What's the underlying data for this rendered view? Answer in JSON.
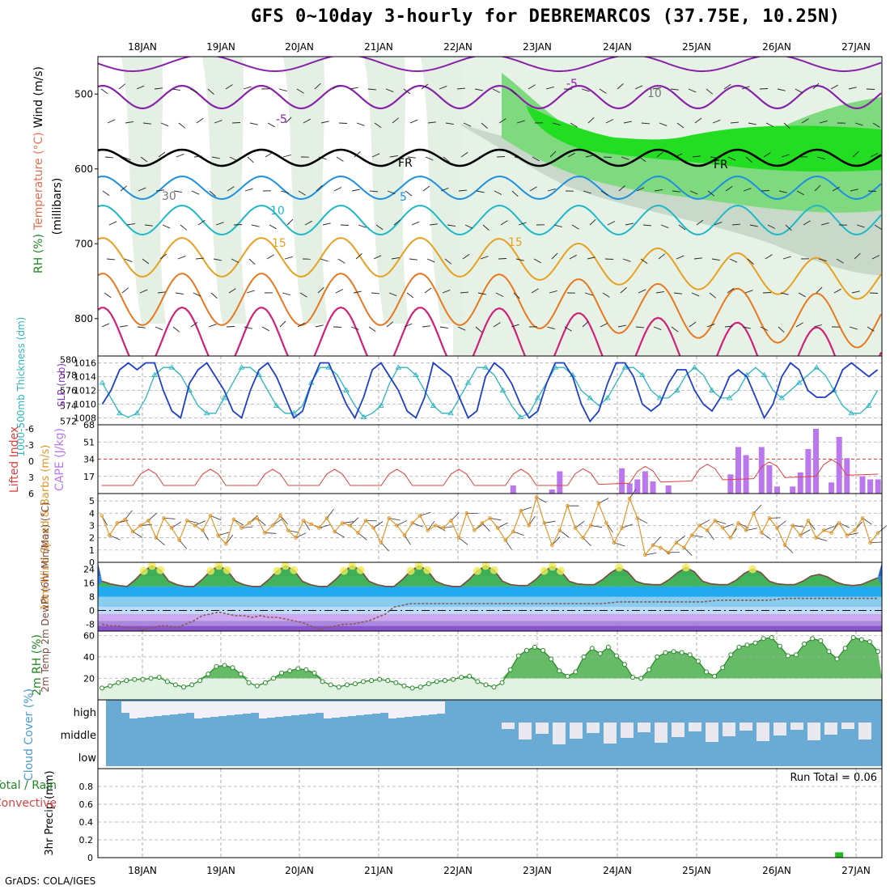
{
  "title": "GFS 0~10day 3-hourly for DEBREMARCOS (37.75E, 10.25N)",
  "footer": "GrADS: COLA/IGES",
  "run_total": "Run Total = 0.06",
  "chart_data": [
    {
      "type": "heatmap",
      "panel": "upper-air",
      "ylabel_parts": [
        "RH (%)",
        "Temperature (°C)",
        "Wind (m/s)"
      ],
      "y_unit_label": "(millibars)",
      "x_ticks": [
        "18JAN",
        "19JAN",
        "20JAN",
        "21JAN",
        "22JAN",
        "23JAN",
        "24JAN",
        "25JAN",
        "26JAN",
        "27JAN"
      ],
      "ylim": [
        850,
        450
      ],
      "yticks": [
        500,
        600,
        700,
        800
      ],
      "contour_labels": [
        "-5",
        "-5",
        "FR",
        "FR",
        "5",
        "10",
        "15",
        "15",
        "30",
        "10"
      ]
    },
    {
      "type": "line",
      "panel": "slp-thickness",
      "ylabel_left": "1000-500mb Thickness (dm)",
      "ylabel_right": "SLP (mb)",
      "left_ticks": [
        572,
        574,
        576,
        578,
        580
      ],
      "right_ticks": [
        1008,
        1010,
        1012,
        1014,
        1016
      ],
      "ylim_left": [
        571.5,
        580.5
      ],
      "ylim_right": [
        1007,
        1017
      ],
      "series": [
        {
          "name": "SLP (mb)",
          "color": "#1f3fc8",
          "values": [
            1010,
            1012,
            1015,
            1016,
            1015,
            1016,
            1016,
            1012,
            1009,
            1008,
            1013,
            1015,
            1016,
            1014,
            1012,
            1009,
            1008,
            1012,
            1015,
            1016,
            1014,
            1011,
            1008,
            1009,
            1013,
            1016,
            1016,
            1013,
            1010,
            1008,
            1011,
            1015,
            1016,
            1014,
            1012,
            1009,
            1008,
            1011,
            1016,
            1015,
            1014,
            1011,
            1008,
            1009,
            1014,
            1016,
            1015,
            1013,
            1010,
            1008,
            1009,
            1013,
            1016,
            1016,
            1014,
            1010,
            1007.5,
            1009,
            1013,
            1016,
            1016,
            1014,
            1010,
            1009,
            1010,
            1013,
            1015,
            1015,
            1012,
            1010,
            1009,
            1011,
            1014,
            1015,
            1014,
            1011,
            1008,
            1010,
            1014,
            1016,
            1015,
            1012,
            1011,
            1011,
            1012,
            1015,
            1016,
            1015,
            1014,
            1015
          ]
        },
        {
          "name": "Thickness (dm)",
          "color": "#2bb5c0",
          "values": [
            577,
            575,
            573,
            572.5,
            573,
            575,
            578,
            579,
            579,
            578,
            576,
            574,
            573,
            573,
            575,
            577,
            579,
            579,
            578,
            576,
            574,
            573,
            573,
            574,
            577,
            579,
            579,
            578,
            576,
            574,
            572.5,
            573,
            574,
            577,
            579,
            579,
            578,
            576,
            574,
            573,
            573,
            575,
            577,
            579,
            579,
            578,
            576,
            574,
            572.5,
            573,
            575,
            577,
            579,
            579,
            578,
            576,
            575,
            574,
            575,
            577,
            579,
            579,
            578,
            576,
            575,
            575,
            576,
            578,
            579,
            578,
            576,
            575,
            575,
            576,
            578,
            579,
            578,
            576,
            575,
            576,
            577,
            578,
            579,
            578,
            576,
            574,
            573,
            573,
            574,
            576
          ]
        }
      ]
    },
    {
      "type": "bar",
      "panel": "cape-lifted-index",
      "ylabel_left": "Lifted Index",
      "ylabel_right": "CAPE (J/kg)",
      "left_ticks": [
        "-6",
        "-3",
        "0",
        "3",
        "6"
      ],
      "right_ticks": [
        17,
        34,
        51,
        68
      ],
      "ylim_cape": [
        0,
        68
      ],
      "ylim_li": [
        6,
        -6
      ],
      "cape": [
        0,
        0,
        0,
        0,
        0,
        0,
        0,
        0,
        0,
        0,
        0,
        0,
        0,
        0,
        0,
        0,
        0,
        0,
        0,
        0,
        0,
        0,
        0,
        0,
        0,
        0,
        0,
        0,
        0,
        0,
        0,
        0,
        0,
        0,
        0,
        0,
        0,
        0,
        0,
        0,
        0,
        0,
        0,
        0,
        0,
        0,
        0,
        0,
        0,
        0,
        0,
        0,
        0,
        8,
        0,
        0,
        0,
        0,
        4,
        22,
        0,
        0,
        0,
        0,
        0,
        0,
        0,
        25,
        10,
        14,
        22,
        12,
        0,
        8,
        0,
        0,
        0,
        0,
        0,
        0,
        0,
        19,
        46,
        38,
        0,
        46,
        28,
        7,
        0,
        7,
        21,
        44,
        64,
        0,
        11,
        56,
        35,
        0,
        17,
        14,
        14
      ]
    },
    {
      "type": "line",
      "panel": "wind-10m",
      "ylabel": "10m Wind Speed & Barbs (m/s)",
      "left_ticks": [
        0,
        1,
        2,
        3,
        4,
        5
      ],
      "ylim": [
        0,
        5.6
      ],
      "series": [
        {
          "name": "10m Wind Speed",
          "color": "#e0962a",
          "values": [
            3.8,
            2.2,
            3.2,
            3.5,
            2.5,
            3.0,
            3.4,
            2.0,
            3.6,
            2.8,
            1.8,
            3.4,
            3.0,
            2.6,
            3.8,
            2.2,
            1.5,
            3.5,
            2.8,
            3.2,
            3.6,
            2.4,
            3.0,
            3.8,
            2.6,
            2.0,
            3.4,
            3.1,
            2.8,
            3.6,
            2.5,
            3.2,
            3.0,
            2.4,
            3.4,
            2.8,
            1.6,
            3.6,
            3.0,
            2.2,
            3.2,
            3.8,
            2.6,
            3.0,
            2.8,
            3.4,
            2.0,
            4.0,
            2.6,
            3.2,
            3.6,
            2.8,
            1.8,
            2.5,
            4.2,
            3.0,
            5.3,
            3.2,
            1.4,
            2.6,
            4.6,
            2.8,
            2.0,
            3.0,
            4.8,
            3.2,
            1.6,
            2.8,
            5.2,
            3.6,
            0.6,
            1.4,
            1.2,
            0.8,
            1.6,
            1.2,
            2.2,
            3.0,
            2.6,
            3.4,
            2.8,
            2.0,
            3.2,
            2.6,
            4.0,
            2.4,
            3.6,
            2.8,
            1.4,
            3.0,
            2.2,
            3.4,
            2.0,
            2.6,
            2.4,
            3.2,
            2.2,
            2.6,
            3.6,
            1.6,
            2.4
          ]
        }
      ]
    },
    {
      "type": "area",
      "panel": "temp-dewpoint",
      "ylabel": "2m Temp 2m DewPt (6hr Min/Max) (°C)",
      "left_ticks": [
        -8,
        0,
        8,
        16,
        24
      ],
      "ylim": [
        -12,
        28
      ],
      "series": [
        {
          "name": "2m Temp",
          "color": "#c8b43c",
          "values": [
            17,
            15.5,
            14.5,
            14,
            18,
            23,
            26,
            23.5,
            17,
            15,
            14,
            14,
            18,
            23,
            26,
            23.5,
            17,
            15,
            14,
            14,
            18,
            23,
            26,
            23.5,
            17,
            15,
            14,
            14,
            18,
            23,
            26,
            23.5,
            17,
            15,
            14,
            14,
            18,
            23,
            26,
            23.5,
            17,
            15,
            14,
            14,
            18,
            23,
            26,
            23.5,
            17,
            15,
            14.5,
            14.5,
            18,
            23,
            25.5,
            23,
            17,
            15.5,
            15,
            15,
            18,
            22,
            25,
            22.5,
            17,
            15.5,
            15,
            15,
            18,
            22,
            25,
            22.5,
            17,
            15.5,
            15,
            15,
            17.5,
            21.5,
            24,
            22,
            17,
            15.5,
            15,
            15,
            17,
            20,
            21,
            19.5,
            16.5,
            15,
            14.5,
            15,
            17,
            19
          ]
        },
        {
          "name": "2m DewPt",
          "color": "#8a5a50",
          "values": [
            -8,
            -9,
            -9,
            -10,
            -10,
            -11,
            -10,
            -9,
            -9,
            -10,
            -8,
            -6,
            -3,
            -2,
            -1,
            -2,
            -3,
            -3,
            -4,
            -3,
            -4,
            -4,
            -5,
            -6,
            -7,
            -9,
            -11,
            -10,
            -9,
            -8,
            -8,
            -7,
            -6,
            -4,
            -2,
            2,
            3,
            4,
            4,
            4,
            4,
            4,
            4,
            4,
            4,
            4,
            4,
            4,
            4,
            4,
            4,
            4,
            4,
            4,
            4,
            4,
            4,
            4,
            4,
            4,
            4,
            4.5,
            5,
            5,
            5,
            5,
            5,
            5,
            5,
            5,
            5,
            5,
            5,
            5.5,
            6,
            6,
            6,
            6,
            6,
            6,
            6,
            6.5,
            7,
            7,
            7,
            7,
            7,
            7,
            7,
            7,
            7,
            7,
            7,
            7
          ]
        }
      ]
    },
    {
      "type": "area",
      "panel": "rh-2m",
      "ylabel": "2m RH (%)",
      "left_ticks": [
        20,
        40,
        60
      ],
      "ylim": [
        0,
        64
      ],
      "series": [
        {
          "name": "2m RH",
          "color": "#2ca02c",
          "values": [
            11,
            13,
            16,
            18,
            19,
            19,
            20,
            21,
            17,
            14,
            12,
            14,
            18,
            24,
            31,
            32,
            30,
            24,
            16,
            13,
            16,
            20,
            25,
            27,
            29,
            28,
            25,
            17,
            14,
            12,
            14,
            15,
            17,
            18,
            19,
            18,
            16,
            13,
            11,
            12,
            15,
            17,
            18,
            19,
            21,
            22,
            17,
            14,
            12,
            16,
            28,
            41,
            46,
            49,
            46,
            38,
            27,
            22,
            26,
            40,
            48,
            43,
            49,
            41,
            33,
            21,
            20,
            28,
            40,
            44,
            45,
            44,
            42,
            36,
            26,
            22,
            30,
            42,
            49,
            51,
            53,
            57,
            58,
            50,
            41,
            42,
            52,
            57,
            55,
            45,
            38,
            48,
            58,
            56,
            54,
            45
          ]
        }
      ]
    },
    {
      "type": "bar",
      "panel": "cloud-cover",
      "ylabel": "Cloud Cover (%)",
      "layer_labels": [
        "high",
        "middle",
        "low"
      ]
    },
    {
      "type": "bar",
      "panel": "precip-3hr",
      "ylabel_parts": [
        "3hr Precip (mm)",
        "Total / Rain",
        "Convective"
      ],
      "left_ticks": [
        "0",
        "0.2",
        "0.4",
        "0.6",
        "0.8"
      ],
      "ylim": [
        0,
        1.0
      ],
      "precip_total": [
        0,
        0,
        0,
        0,
        0,
        0,
        0,
        0,
        0,
        0,
        0,
        0,
        0,
        0,
        0,
        0,
        0,
        0,
        0,
        0,
        0,
        0,
        0,
        0,
        0,
        0,
        0,
        0,
        0,
        0,
        0,
        0,
        0,
        0,
        0,
        0,
        0,
        0,
        0,
        0,
        0,
        0,
        0,
        0,
        0,
        0,
        0,
        0,
        0,
        0,
        0,
        0,
        0,
        0,
        0,
        0,
        0,
        0,
        0,
        0,
        0,
        0,
        0,
        0,
        0,
        0,
        0,
        0,
        0,
        0,
        0,
        0,
        0,
        0,
        0,
        0,
        0,
        0,
        0,
        0,
        0,
        0,
        0,
        0,
        0,
        0,
        0,
        0,
        0,
        0,
        0,
        0,
        0,
        0,
        0,
        0.06,
        0,
        0,
        0,
        0,
        0
      ]
    }
  ]
}
